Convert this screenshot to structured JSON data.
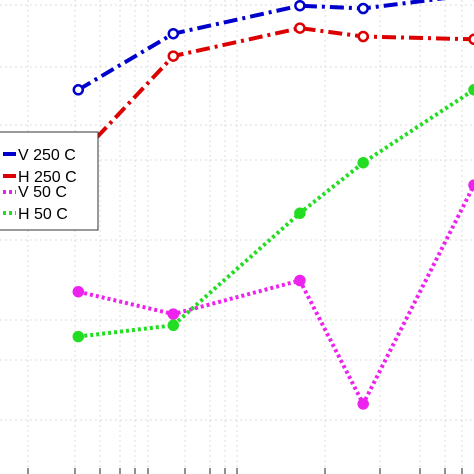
{
  "chart_data": {
    "type": "line",
    "x": [
      1.0,
      1.6,
      2.4,
      2.8,
      3.5
    ],
    "series": [
      {
        "name": "V 250 C",
        "color": "#0000cc",
        "dash": "dashdot",
        "y": [
          7.1,
          8.1,
          8.6,
          8.55,
          8.8
        ]
      },
      {
        "name": "H 250 C",
        "color": "#dd0000",
        "dash": "dashdot",
        "y": [
          5.9,
          7.7,
          8.2,
          8.05,
          8.0
        ]
      },
      {
        "name": "V 50 C",
        "color": "#ee22ee",
        "dash": "dotted",
        "y": [
          3.5,
          3.1,
          3.7,
          1.5,
          5.4
        ]
      },
      {
        "name": "H 50 C",
        "color": "#22dd22",
        "dash": "dotted",
        "y": [
          2.7,
          2.9,
          4.9,
          5.8,
          7.1
        ]
      }
    ],
    "xlim": [
      0.0,
      3.5
    ],
    "ylim": [
      0.0,
      9.2
    ],
    "grid": true,
    "legend_placement": "left"
  }
}
